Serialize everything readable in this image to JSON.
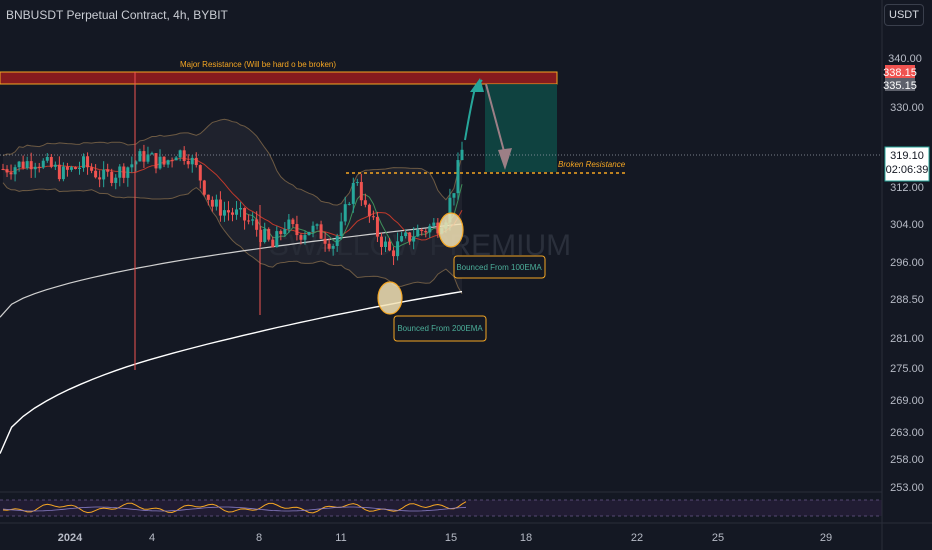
{
  "title": "BNBUSDT Perpetual Contract, 4h, BYBIT",
  "currency_button": "USDT",
  "watermark": "SWALLOW PREMIUM",
  "annotations": {
    "major_resistance": "Major Resistance (Will be hard o be broken)",
    "broken_resistance": "Broken Resistance",
    "bounce_100": "Bounced From 100EMA",
    "bounce_200": "Bounced From 200EMA"
  },
  "price_tags": {
    "top_partial": "340.00",
    "red_tag": "338.15",
    "gray_tag": "335.15",
    "current_price": "319.10",
    "countdown": "02:06:39"
  },
  "colors": {
    "background": "#141823",
    "bull": "#26a69a",
    "bear": "#ef5350",
    "resistance_zone": "#b71c1c",
    "orange": "#f5a623",
    "ema200": "#ffffff",
    "ema100": "#cccccc",
    "ema50": "#ef5350",
    "rsi": "#f5a623",
    "target_zone": "#0e4a45"
  },
  "chart_data": {
    "type": "candlestick",
    "title": "BNBUSDT Perpetual Contract, 4h, BYBIT",
    "y_axis": {
      "ticks": [
        "330.00",
        "319.10",
        "312.00",
        "304.00",
        "296.00",
        "288.50",
        "281.00",
        "275.00",
        "269.00",
        "263.00",
        "258.00",
        "253.00"
      ],
      "range": [
        250,
        342
      ]
    },
    "x_axis": {
      "ticks": [
        "2024",
        "4",
        "8",
        "11",
        "15",
        "18",
        "22",
        "25",
        "29"
      ]
    },
    "series": [
      {
        "name": "candles",
        "open": [
          316,
          318,
          316,
          318,
          319,
          317,
          316,
          315,
          315,
          316,
          318,
          318,
          319,
          319,
          318,
          318,
          319,
          319,
          318,
          319,
          317,
          319,
          319,
          320,
          320,
          318,
          316,
          316,
          316,
          318,
          318,
          320,
          320,
          318,
          319,
          320,
          321,
          321,
          320,
          320,
          318,
          316,
          313,
          311,
          311,
          311,
          312,
          312,
          312,
          313,
          313,
          312,
          311,
          309,
          304,
          303,
          304,
          303,
          304,
          304,
          305,
          306,
          304,
          304,
          305,
          308,
          309,
          310,
          311,
          313,
          315,
          316,
          317,
          316,
          315,
          316,
          317,
          318,
          319,
          321
        ],
        "close": [
          318,
          316,
          318,
          319,
          317,
          316,
          315,
          315,
          316,
          318,
          318,
          319,
          319,
          318,
          318,
          319,
          319,
          318,
          319,
          317,
          319,
          319,
          320,
          320,
          318,
          316,
          316,
          316,
          318,
          318,
          320,
          320,
          318,
          319,
          320,
          321,
          321,
          320,
          320,
          318,
          316,
          313,
          311,
          311,
          311,
          312,
          312,
          312,
          313,
          313,
          312,
          311,
          309,
          304,
          303,
          304,
          303,
          304,
          304,
          305,
          306,
          304,
          304,
          305,
          308,
          309,
          310,
          311,
          313,
          315,
          316,
          317,
          316,
          315,
          316,
          317,
          318,
          319,
          321,
          323
        ]
      },
      {
        "name": "EMA 200",
        "values": []
      },
      {
        "name": "EMA 100",
        "values": []
      }
    ]
  }
}
